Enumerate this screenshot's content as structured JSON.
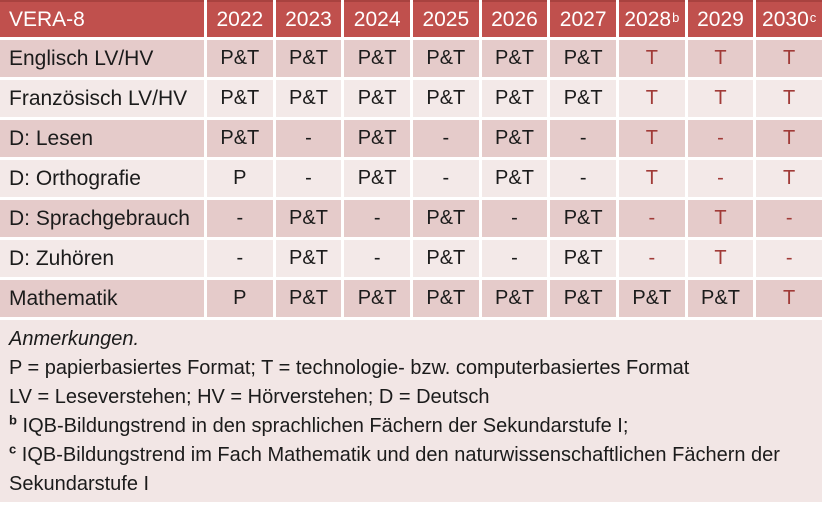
{
  "colors": {
    "header_bg": "#C0504D",
    "header_text": "#FFFFFF",
    "band_dark": "#E5CBCA",
    "band_light": "#F3E9E8",
    "notes_bg": "#F2E6E5",
    "body_text": "#1B1B1B",
    "accent_text": "#A13B38",
    "grid_line": "#FFFFFF"
  },
  "table": {
    "corner_label": "VERA-8",
    "tech_from_col": 6,
    "year_headers": [
      {
        "label": "2022",
        "sup": ""
      },
      {
        "label": "2023",
        "sup": ""
      },
      {
        "label": "2024",
        "sup": ""
      },
      {
        "label": "2025",
        "sup": ""
      },
      {
        "label": "2026",
        "sup": ""
      },
      {
        "label": "2027",
        "sup": ""
      },
      {
        "label": "2028",
        "sup": "b"
      },
      {
        "label": "2029",
        "sup": ""
      },
      {
        "label": "2030",
        "sup": "c"
      }
    ],
    "rows": [
      {
        "label": "Englisch LV/HV",
        "values": [
          "P&T",
          "P&T",
          "P&T",
          "P&T",
          "P&T",
          "P&T",
          "T",
          "T",
          "T"
        ]
      },
      {
        "label": "Französisch LV/HV",
        "values": [
          "P&T",
          "P&T",
          "P&T",
          "P&T",
          "P&T",
          "P&T",
          "T",
          "T",
          "T"
        ]
      },
      {
        "label": "D: Lesen",
        "values": [
          "P&T",
          "-",
          "P&T",
          "-",
          "P&T",
          "-",
          "T",
          "-",
          "T"
        ]
      },
      {
        "label": "D: Orthografie",
        "values": [
          "P",
          "-",
          "P&T",
          "-",
          "P&T",
          "-",
          "T",
          "-",
          "T"
        ]
      },
      {
        "label": "D: Sprachgebrauch",
        "values": [
          "-",
          "P&T",
          "-",
          "P&T",
          "-",
          "P&T",
          "-",
          "T",
          "-"
        ]
      },
      {
        "label": "D: Zuhören",
        "values": [
          "-",
          "P&T",
          "-",
          "P&T",
          "-",
          "P&T",
          "-",
          "T",
          "-"
        ]
      },
      {
        "label": "Mathematik",
        "values": [
          "P",
          "P&T",
          "P&T",
          "P&T",
          "P&T",
          "P&T",
          "P&T",
          "P&T",
          "T"
        ]
      }
    ]
  },
  "notes": {
    "title": "Anmerkungen.",
    "lines": [
      {
        "sup": "",
        "text": "P = papierbasiertes Format; T = technologie- bzw. computerbasiertes Format"
      },
      {
        "sup": "",
        "text": "LV = Leseverstehen; HV = Hörverstehen; D = Deutsch"
      },
      {
        "sup": "b",
        "text": "IQB-Bildungstrend in den sprachlichen Fächern der Sekundarstufe I;"
      },
      {
        "sup": "c",
        "text": "IQB-Bildungstrend im Fach Mathematik und den naturwissenschaftlichen Fächern der Sekundarstufe I"
      }
    ]
  }
}
